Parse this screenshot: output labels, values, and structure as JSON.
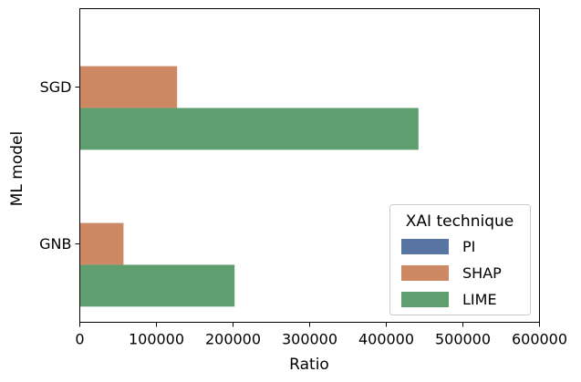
{
  "chart_data": {
    "type": "bar",
    "orientation": "horizontal",
    "categories": [
      "SGD",
      "GNB"
    ],
    "series": [
      {
        "name": "PI",
        "values": [
          0,
          0
        ],
        "color": "#5975a4"
      },
      {
        "name": "SHAP",
        "values": [
          127000,
          57000
        ],
        "color": "#cc8963"
      },
      {
        "name": "LIME",
        "values": [
          442000,
          202000
        ],
        "color": "#5f9e6e"
      }
    ],
    "xlabel": "Ratio",
    "ylabel": "ML model",
    "xlim": [
      0,
      600000
    ],
    "xticks": [
      0,
      100000,
      200000,
      300000,
      400000,
      500000,
      600000
    ],
    "xtick_labels": [
      "0",
      "100000",
      "200000",
      "300000",
      "400000",
      "500000",
      "600000"
    ],
    "grid": false,
    "legend": {
      "title": "XAI technique",
      "position": "lower-right"
    }
  }
}
